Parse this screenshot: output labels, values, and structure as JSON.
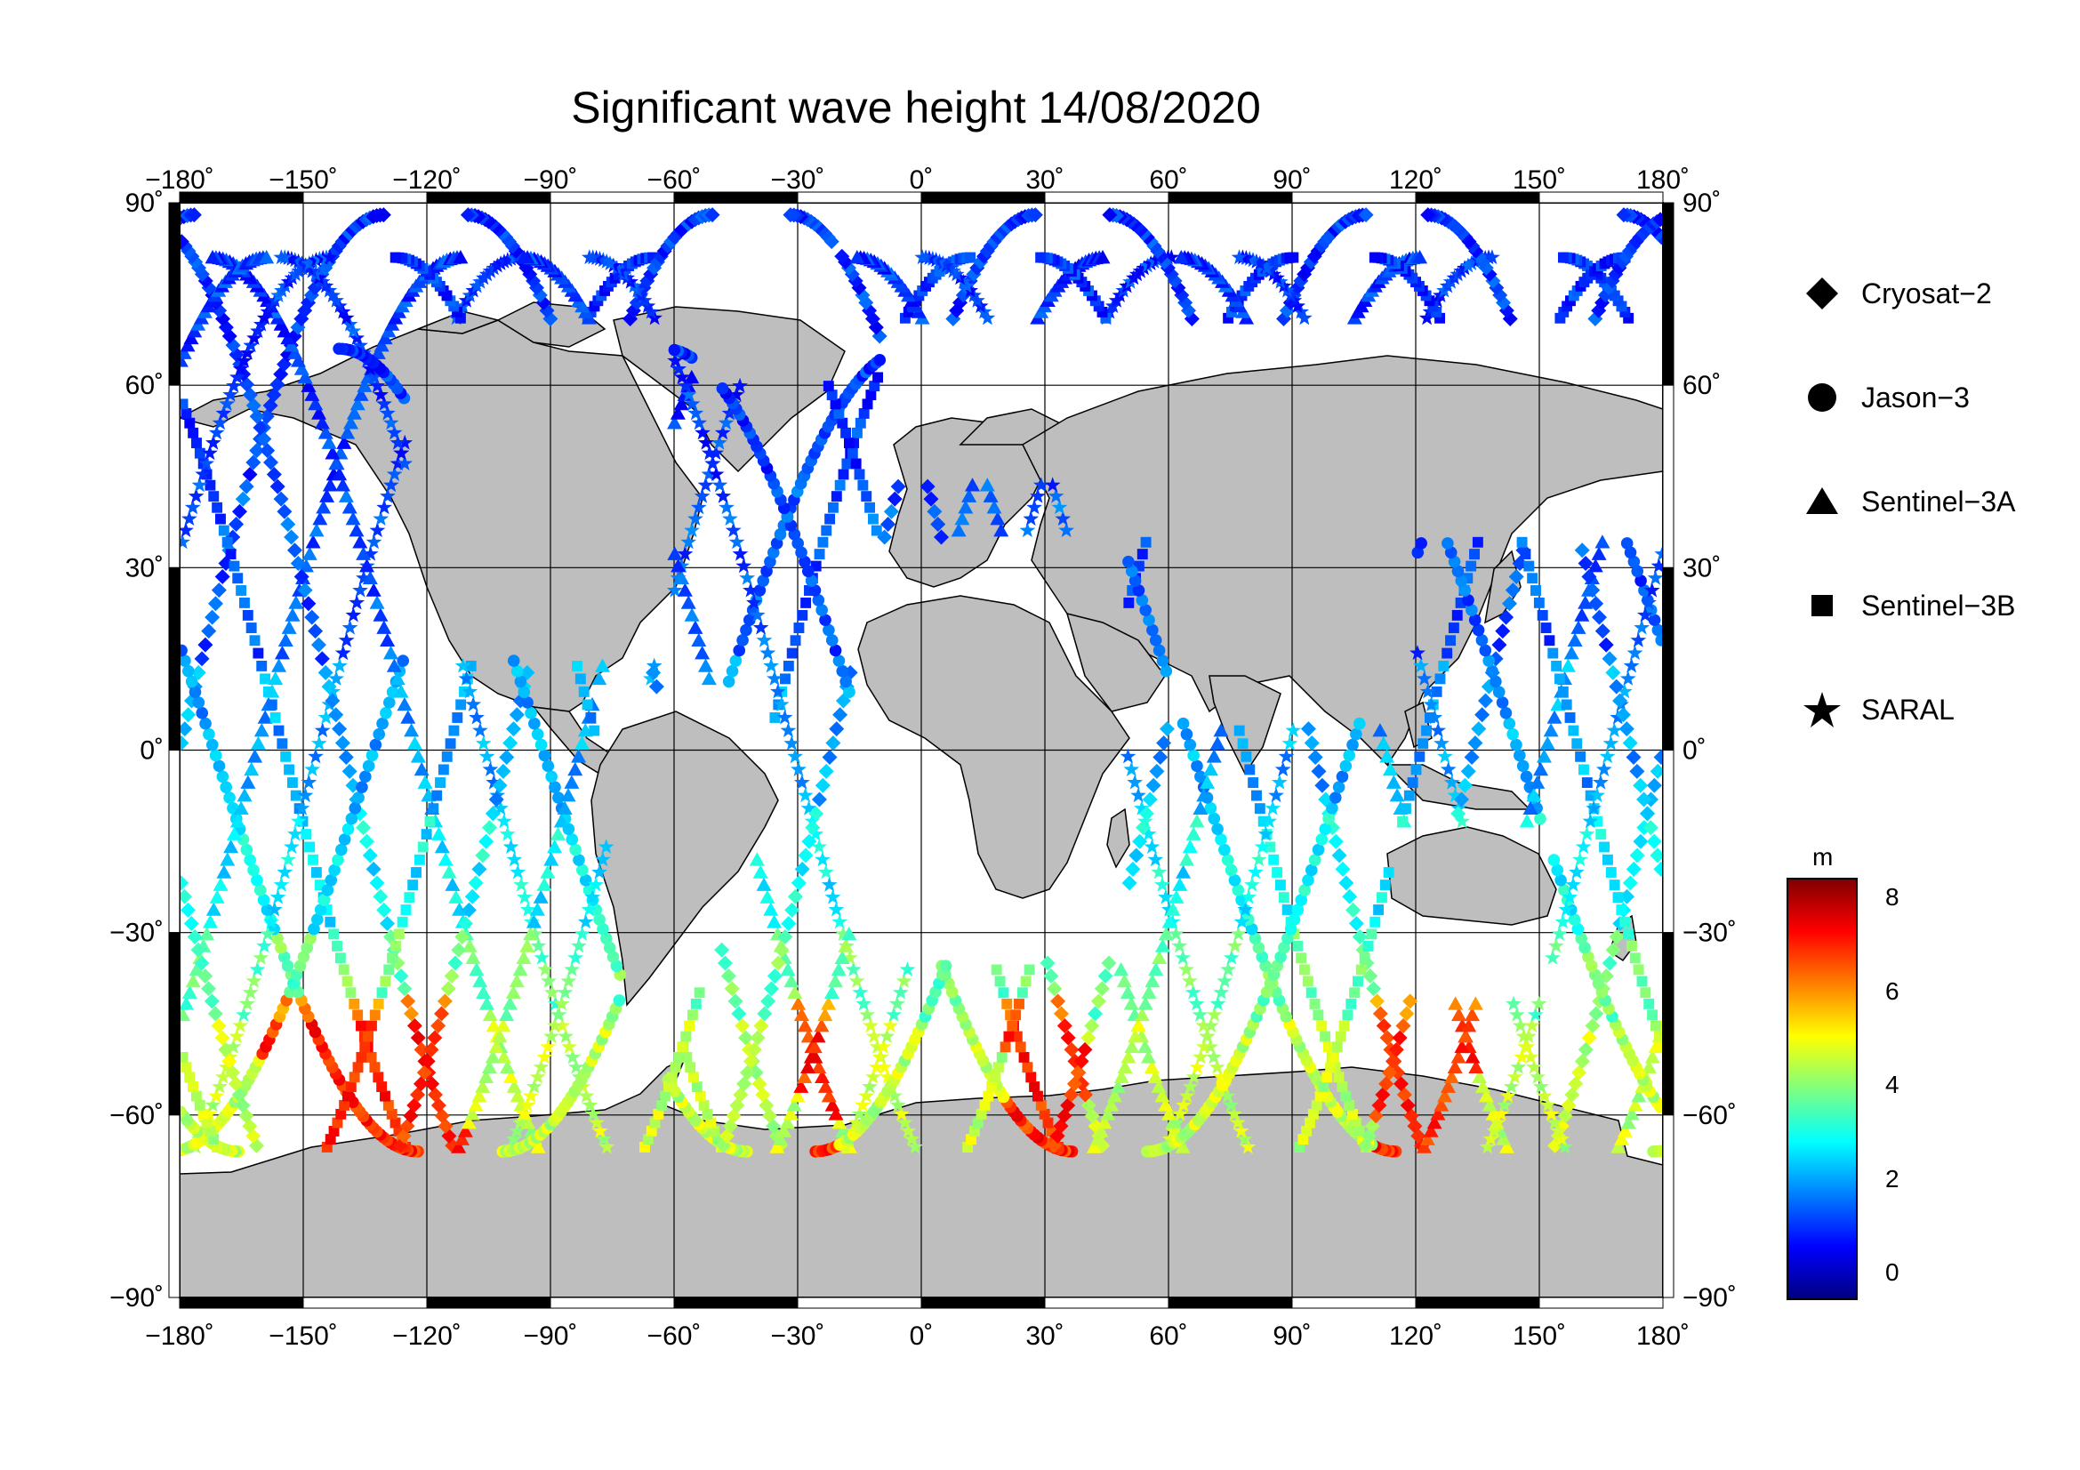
{
  "title": "Significant wave height 14/08/2020",
  "axes": {
    "x_ticks": [
      "−180˚",
      "−150˚",
      "−120˚",
      "−90˚",
      "−60˚",
      "−30˚",
      "0˚",
      "30˚",
      "60˚",
      "90˚",
      "120˚",
      "150˚",
      "180˚"
    ],
    "y_ticks_left": [
      "90˚",
      "60˚",
      "30˚",
      "0˚",
      "−30˚",
      "−60˚",
      "−90˚"
    ],
    "y_ticks_right": [
      "90˚",
      "60˚",
      "30˚",
      "0˚",
      "−30˚",
      "−60˚",
      "−90˚"
    ],
    "lon_range": [
      -180,
      180
    ],
    "lat_range": [
      -90,
      90
    ],
    "grid": true
  },
  "legend": [
    {
      "label": "Cryosat−2",
      "icon": "diamond-icon"
    },
    {
      "label": "Jason−3",
      "icon": "circle-icon"
    },
    {
      "label": "Sentinel−3A",
      "icon": "triangle-icon"
    },
    {
      "label": "Sentinel−3B",
      "icon": "square-icon"
    },
    {
      "label": "SARAL",
      "icon": "star-icon"
    }
  ],
  "colorbar": {
    "unit": "m",
    "ticks": [
      "8",
      "6",
      "4",
      "2",
      "0"
    ],
    "range": [
      -0.6,
      8.6
    ],
    "colormap": "jet",
    "colors": [
      "#00007f",
      "#0000ff",
      "#007fff",
      "#00ffff",
      "#7fff7f",
      "#ffff00",
      "#ff7f00",
      "#ff0000",
      "#7f0000"
    ]
  },
  "land_color": "#bebebe",
  "chart_data": {
    "type": "map-scatter",
    "variable": "significant wave height",
    "unit": "m",
    "satellites": [
      "Cryosat-2",
      "Jason-3",
      "Sentinel-3A",
      "Sentinel-3B",
      "SARAL"
    ]
  }
}
